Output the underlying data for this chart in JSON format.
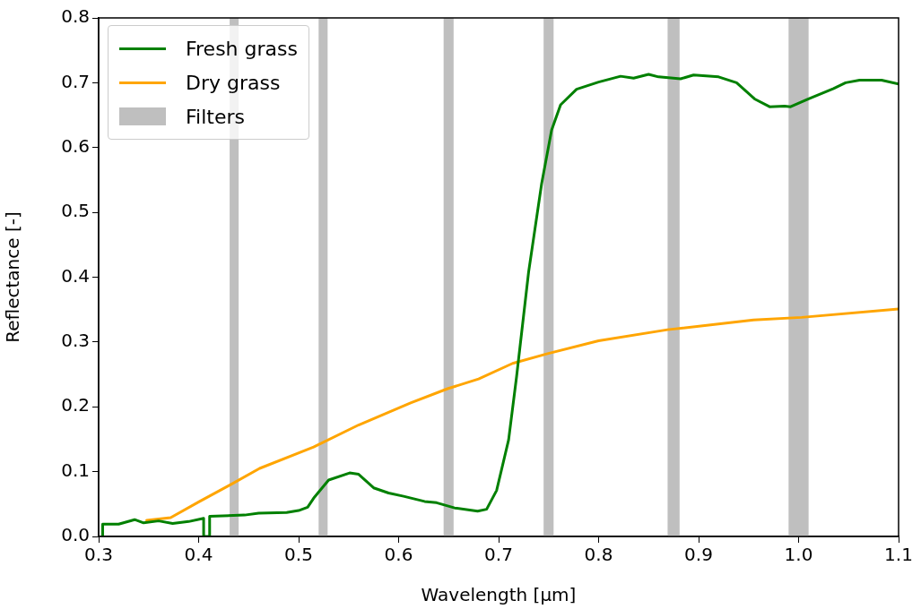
{
  "chart_data": {
    "type": "line",
    "xlabel": "Wavelength [µm]",
    "ylabel": "Reflectance [-]",
    "xlim": [
      0.3,
      1.1
    ],
    "xticks": [
      0.3,
      0.4,
      0.5,
      0.6,
      0.7,
      0.8,
      0.9,
      {
        "value": 1.0,
        "label": "1.0"
      },
      1.1
    ],
    "ylim": [
      0,
      0.8
    ],
    "yticks": [
      {
        "value": 0,
        "label": "0.0"
      },
      0.1,
      0.2,
      0.3,
      0.4,
      0.5,
      0.6,
      0.7,
      0.8
    ],
    "grid": false,
    "legend": "top left",
    "marker": "none",
    "line_style": "solid",
    "series": [
      {
        "name": "Fresh grass",
        "color": "#008000",
        "x": [
          0.304,
          0.304,
          0.32,
          0.336,
          0.345,
          0.36,
          0.374,
          0.39,
          0.405,
          0.405,
          0.411,
          0.411,
          0.446,
          0.46,
          0.488,
          0.5,
          0.509,
          0.515,
          0.53,
          0.551,
          0.56,
          0.575,
          0.59,
          0.605,
          0.626,
          0.638,
          0.656,
          0.679,
          0.688,
          0.698,
          0.71,
          0.718,
          0.73,
          0.743,
          0.753,
          0.762,
          0.778,
          0.8,
          0.822,
          0.835,
          0.85,
          0.86,
          0.882,
          0.895,
          0.92,
          0.938,
          0.956,
          0.971,
          0.986,
          0.992,
          1.01,
          1.035,
          1.047,
          1.061,
          1.083,
          1.1
        ],
        "values": [
          0,
          0.019,
          0.019,
          0.026,
          0.021,
          0.024,
          0.02,
          0.023,
          0.028,
          0,
          0,
          0.031,
          0.033,
          0.036,
          0.037,
          0.04,
          0.045,
          0.059,
          0.087,
          0.098,
          0.096,
          0.075,
          0.067,
          0.062,
          0.054,
          0.052,
          0.044,
          0.039,
          0.042,
          0.071,
          0.149,
          0.247,
          0.408,
          0.544,
          0.627,
          0.666,
          0.69,
          0.701,
          0.71,
          0.707,
          0.713,
          0.709,
          0.706,
          0.712,
          0.709,
          0.7,
          0.675,
          0.663,
          0.664,
          0.663,
          0.675,
          0.691,
          0.7,
          0.704,
          0.704,
          0.698
        ]
      },
      {
        "name": "Dry grass",
        "color": "#ffa500",
        "x": [
          0.348,
          0.372,
          0.401,
          0.432,
          0.461,
          0.515,
          0.56,
          0.612,
          0.649,
          0.68,
          0.714,
          0.749,
          0.8,
          0.869,
          0.955,
          1.003,
          1.1
        ],
        "values": [
          0.025,
          0.029,
          0.054,
          0.08,
          0.105,
          0.138,
          0.172,
          0.206,
          0.228,
          0.243,
          0.267,
          0.282,
          0.302,
          0.319,
          0.334,
          0.338,
          0.351
        ]
      }
    ],
    "bands": [
      {
        "axis": "x",
        "from": 0.431,
        "to": 0.44,
        "label": "Filters",
        "color": "#bfbfbf"
      },
      {
        "axis": "x",
        "from": 0.52,
        "to": 0.529,
        "color": "#bfbfbf"
      },
      {
        "axis": "x",
        "from": 0.645,
        "to": 0.655,
        "color": "#bfbfbf"
      },
      {
        "axis": "x",
        "from": 0.745,
        "to": 0.755,
        "color": "#bfbfbf"
      },
      {
        "axis": "x",
        "from": 0.869,
        "to": 0.881,
        "color": "#bfbfbf"
      },
      {
        "axis": "x",
        "from": 0.99,
        "to": 1.01,
        "color": "#bfbfbf"
      }
    ]
  }
}
